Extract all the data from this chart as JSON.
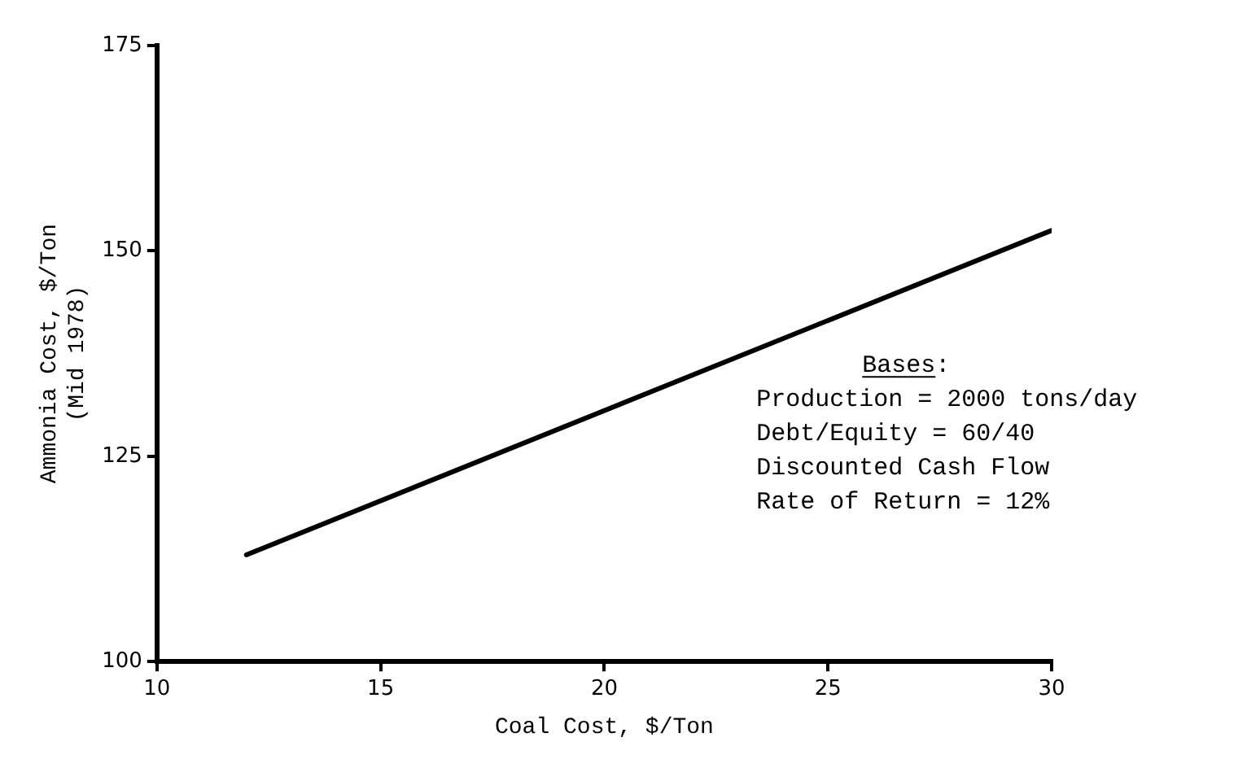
{
  "chart_data": {
    "type": "line",
    "xlabel": "Coal Cost, $/Ton",
    "ylabel": "Ammonia Cost, $/Ton\n(Mid 1978)",
    "x": [
      12,
      30
    ],
    "series": [
      {
        "color": "#000000",
        "values": [
          113,
          152.5
        ]
      }
    ],
    "xlim": [
      10,
      30
    ],
    "xticks": [
      10,
      15,
      20,
      25,
      30
    ],
    "ylim": [
      100,
      175
    ],
    "yticks": [
      100,
      125,
      150,
      175
    ],
    "grid": false,
    "legend": false,
    "marker": "none",
    "line_style": "solid",
    "annotations": [
      "Bases:",
      "Production = 2000 tons/day",
      "Debt/Equity = 60/40",
      "Discounted Cash Flow",
      "Rate of Return = 12%"
    ]
  }
}
